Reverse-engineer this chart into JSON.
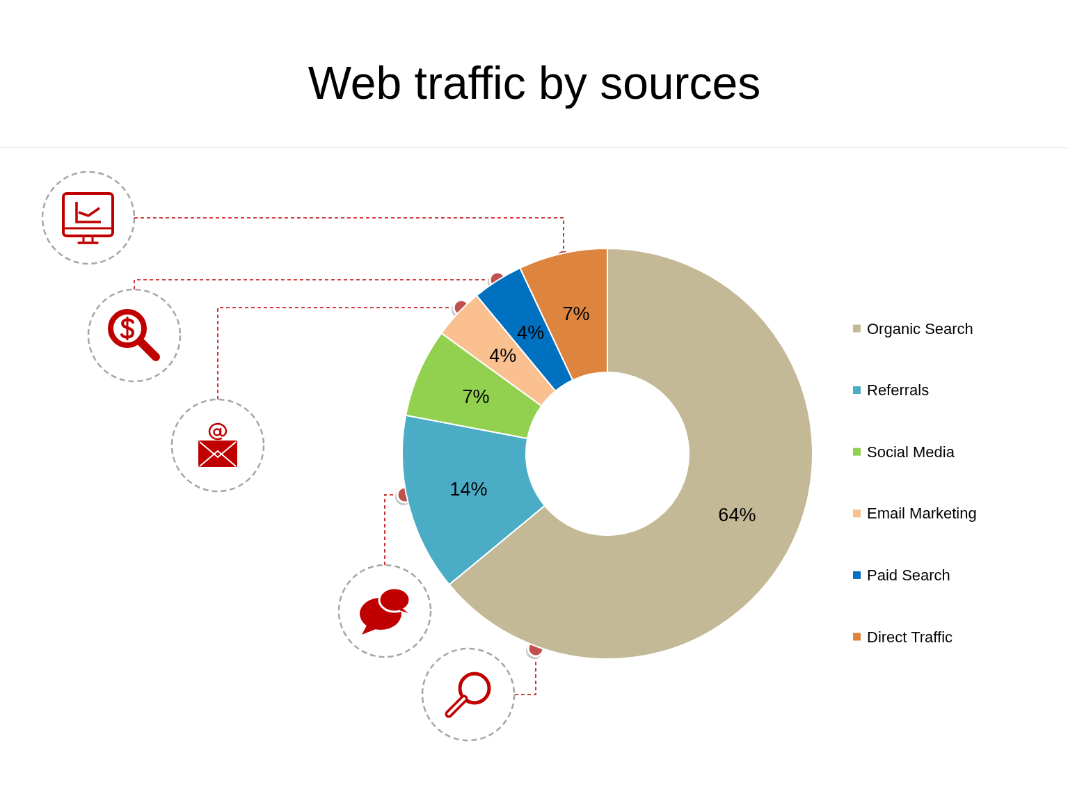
{
  "chart_data": {
    "type": "donut",
    "title": "Web traffic by sources",
    "categories": [
      "Organic Search",
      "Referrals",
      "Social Media",
      "Email Marketing",
      "Paid Search",
      "Direct Traffic"
    ],
    "values": [
      64,
      14,
      7,
      4,
      4,
      7
    ],
    "colors": [
      "#c4b996",
      "#4bacc6",
      "#92d050",
      "#fac090",
      "#0070c0",
      "#dd843e"
    ],
    "value_labels": [
      "64%",
      "14%",
      "7%",
      "4%",
      "4%",
      "7%"
    ],
    "legend": "right"
  }
}
